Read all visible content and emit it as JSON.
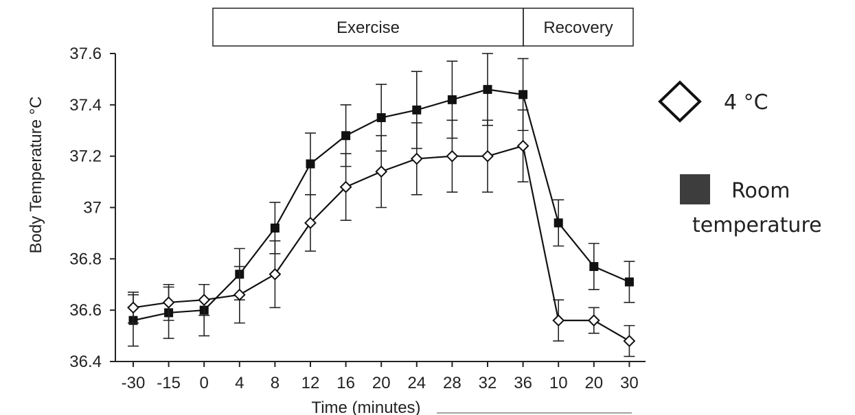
{
  "chart_data": {
    "type": "line",
    "categories": [
      "-30",
      "-15",
      "0",
      "4",
      "8",
      "12",
      "16",
      "20",
      "24",
      "28",
      "32",
      "36",
      "10",
      "20",
      "30"
    ],
    "phases": [
      {
        "label": "Exercise",
        "from": "0",
        "to": "36"
      },
      {
        "label": "Recovery",
        "from": "36",
        "to": "30"
      }
    ],
    "xlabel": "Time (minutes)",
    "ylabel": "Body Temperature °C",
    "ylim": [
      36.4,
      37.6
    ],
    "yticks": [
      "36.4",
      "36.6",
      "36.8",
      "37",
      "37.2",
      "37.4",
      "37.6"
    ],
    "legend_position": "right",
    "series": [
      {
        "name": "4 °C",
        "marker": "diamond-open",
        "values": [
          36.61,
          36.63,
          36.64,
          36.66,
          36.74,
          36.94,
          37.08,
          37.14,
          37.19,
          37.2,
          37.2,
          37.24,
          36.56,
          36.56,
          36.48
        ],
        "error": [
          0.06,
          0.07,
          0.06,
          0.11,
          0.13,
          0.11,
          0.13,
          0.14,
          0.14,
          0.14,
          0.14,
          0.14,
          0.08,
          0.05,
          0.06
        ]
      },
      {
        "name": "Room temperature",
        "legend_lines": [
          "Room",
          "temperature"
        ],
        "marker": "square-filled",
        "values": [
          36.56,
          36.59,
          36.6,
          36.74,
          36.92,
          37.17,
          37.28,
          37.35,
          37.38,
          37.42,
          37.46,
          37.44,
          36.94,
          36.77,
          36.71
        ],
        "error": [
          0.1,
          0.1,
          0.1,
          0.1,
          0.1,
          0.12,
          0.12,
          0.13,
          0.15,
          0.15,
          0.14,
          0.14,
          0.09,
          0.09,
          0.08
        ]
      }
    ]
  }
}
